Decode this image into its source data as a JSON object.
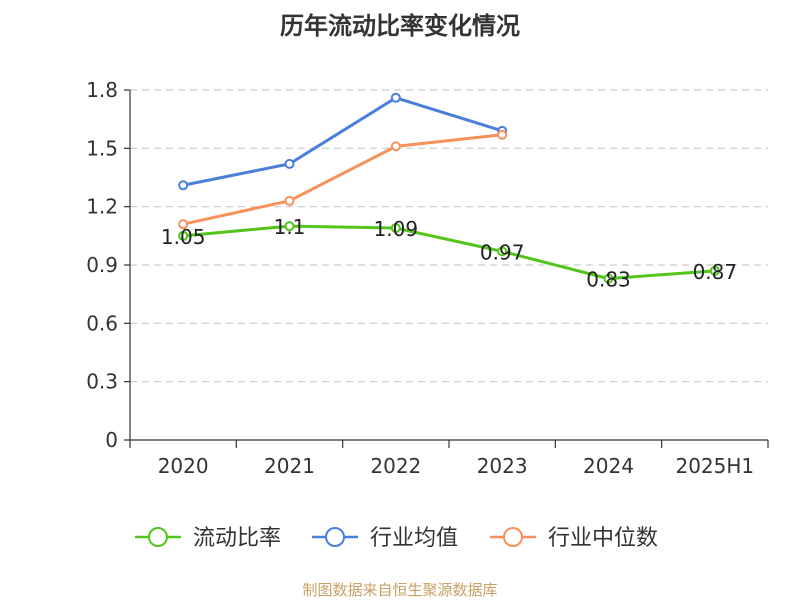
{
  "chart_data": {
    "type": "line",
    "title": "历年流动比率变化情况",
    "categories": [
      "2020",
      "2021",
      "2022",
      "2023",
      "2024",
      "2025H1"
    ],
    "ylim": [
      0,
      1.8
    ],
    "yticks": [
      "0",
      "0.3",
      "0.6",
      "0.9",
      "1.2",
      "1.5",
      "1.8"
    ],
    "grid": true,
    "legend_position": "bottom",
    "series": [
      {
        "name": "流动比率",
        "color": "#52c41a",
        "values": [
          1.05,
          1.1,
          1.09,
          0.97,
          0.83,
          0.87
        ],
        "labels": [
          "1.05",
          "1.1",
          "1.09",
          "0.97",
          "0.83",
          "0.87"
        ]
      },
      {
        "name": "行业均值",
        "color": "#4a7fd9",
        "values": [
          1.31,
          1.42,
          1.76,
          1.59,
          null,
          null
        ]
      },
      {
        "name": "行业中位数",
        "color": "#f7905a",
        "values": [
          1.11,
          1.23,
          1.51,
          1.57,
          null,
          null
        ]
      }
    ]
  },
  "source_text": "制图数据来自恒生聚源数据库"
}
